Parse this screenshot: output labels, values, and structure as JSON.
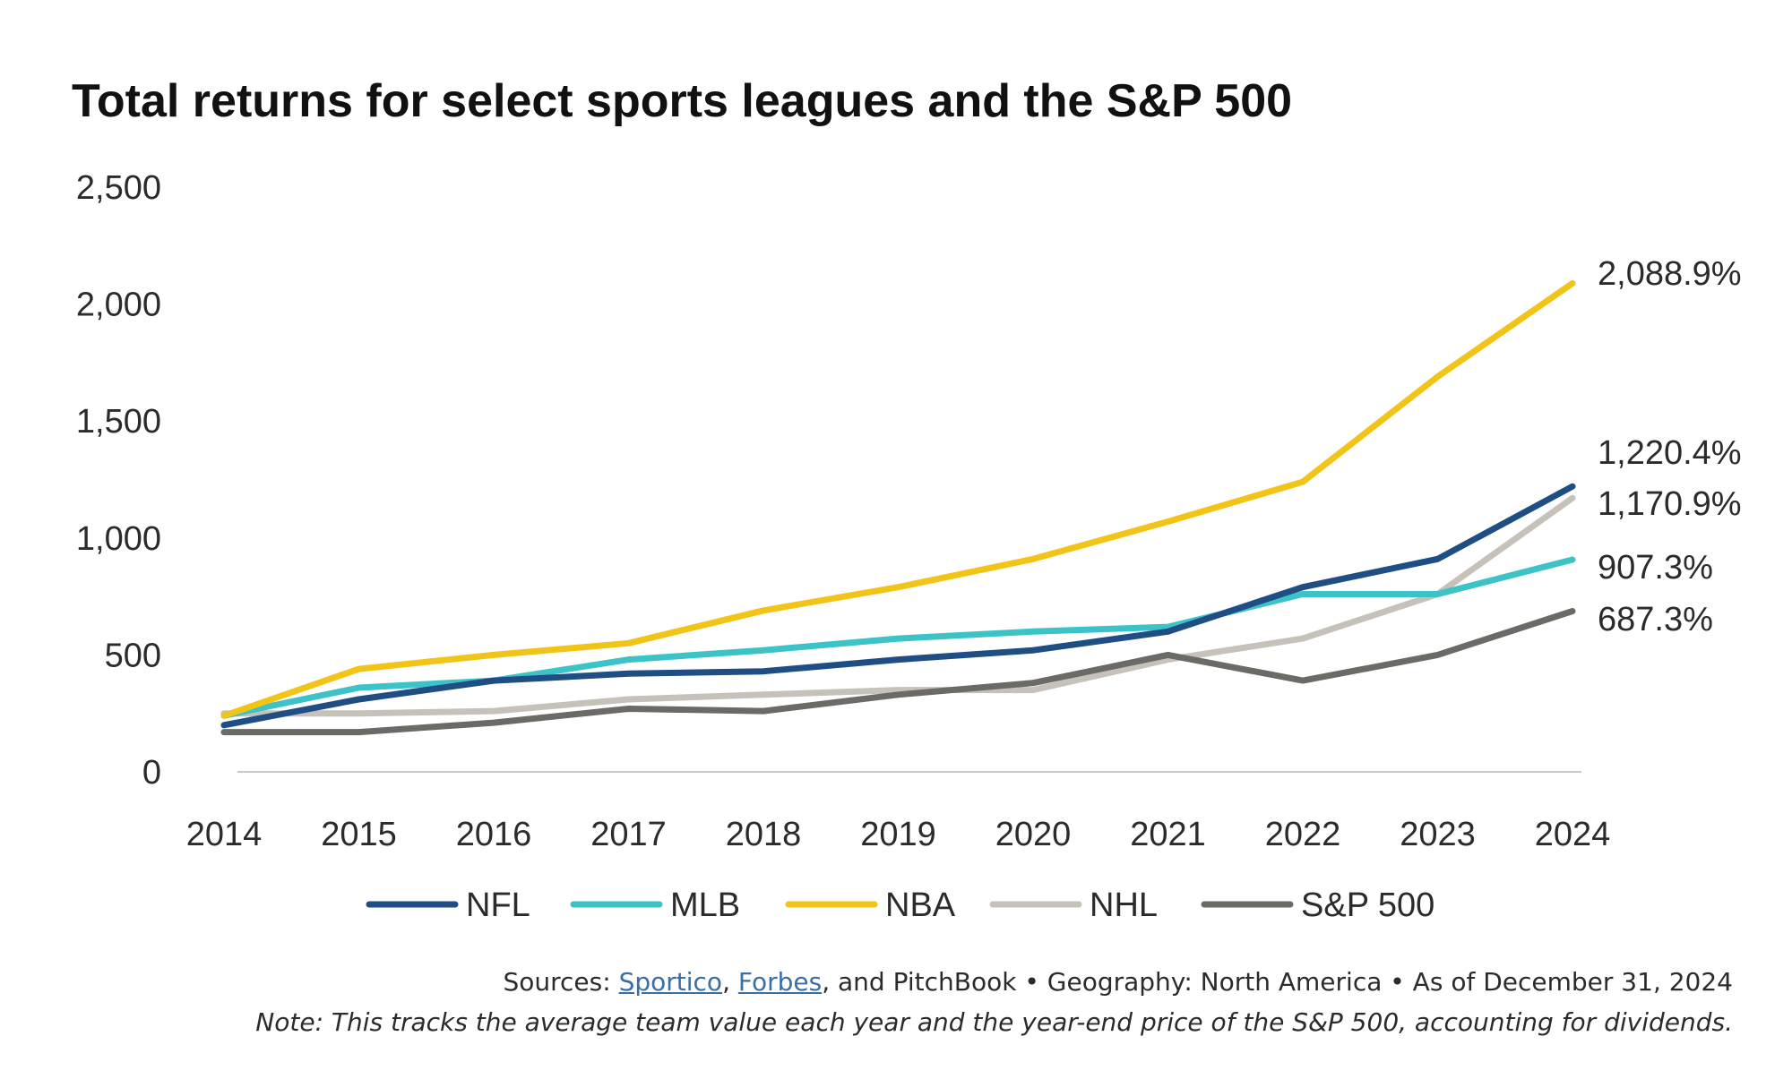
{
  "chart_data": {
    "type": "line",
    "title": "Total returns for select sports leagues and the S&P 500",
    "xlabel": "",
    "ylabel": "",
    "categories": [
      "2014",
      "2015",
      "2016",
      "2017",
      "2018",
      "2019",
      "2020",
      "2021",
      "2022",
      "2023",
      "2024"
    ],
    "ylim": [
      0,
      2500
    ],
    "yticks": [
      "0",
      "500",
      "1,000",
      "1,500",
      "2,000",
      "2,500"
    ],
    "grid": false,
    "legend_position": "bottom",
    "series": [
      {
        "name": "NFL",
        "color": "#1f4e85",
        "values": [
          200,
          310,
          390,
          420,
          430,
          480,
          520,
          600,
          790,
          910,
          1220.4
        ],
        "end_label": "1,220.4%"
      },
      {
        "name": "MLB",
        "color": "#3cc3c8",
        "values": [
          240,
          360,
          390,
          480,
          520,
          570,
          600,
          620,
          760,
          760,
          907.3
        ],
        "end_label": "907.3%"
      },
      {
        "name": "NBA",
        "color": "#f2c417",
        "values": [
          240,
          440,
          500,
          550,
          690,
          790,
          910,
          1070,
          1240,
          1690,
          2088.9
        ],
        "end_label": "2,088.9%"
      },
      {
        "name": "NHL",
        "color": "#c6c2ba",
        "values": [
          250,
          250,
          260,
          310,
          330,
          350,
          350,
          480,
          570,
          760,
          1170.9
        ],
        "end_label": "1,170.9%"
      },
      {
        "name": "S&P 500",
        "color": "#6b6a66",
        "values": [
          170,
          170,
          210,
          270,
          260,
          330,
          380,
          500,
          390,
          500,
          687.3
        ],
        "end_label": "687.3%"
      }
    ]
  },
  "footer": {
    "sources_prefix": "Sources: ",
    "sources_link1": "Sportico",
    "sources_sep": ", ",
    "sources_link2": "Forbes",
    "sources_rest": ", and PitchBook  •  Geography: North America  •  As of December 31, 2024",
    "note": "Note: This tracks the average team value each year and the year-end price of the S&P 500, accounting for dividends."
  }
}
